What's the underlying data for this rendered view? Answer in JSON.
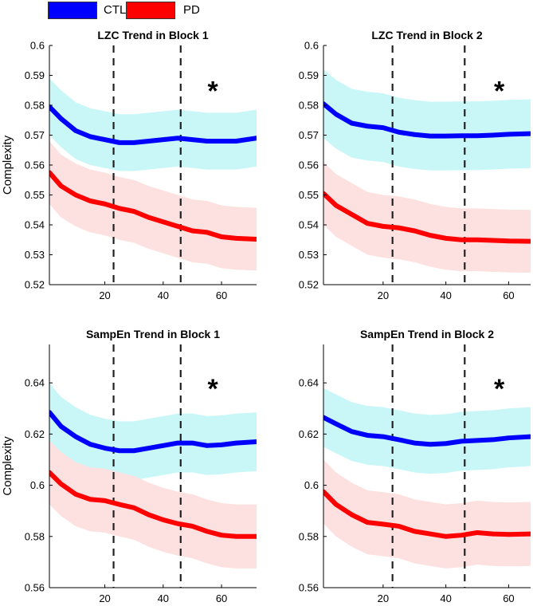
{
  "legend": {
    "items": [
      {
        "label": "CTL",
        "color": "#0000ff"
      },
      {
        "label": "PD",
        "color": "#ff0000"
      }
    ]
  },
  "colors": {
    "ctl_line": "#0000ff",
    "ctl_band": "#c9f7f7",
    "pd_line": "#ff0000",
    "pd_band": "#fde0e0",
    "marker": "#000000"
  },
  "significance_marker": "*",
  "chart_data": [
    {
      "type": "line",
      "title": "LZC Trend in Block 1",
      "ylabel": "Complexity",
      "xlabel": "",
      "xlim": [
        1,
        72
      ],
      "ylim": [
        0.52,
        0.6
      ],
      "xticks": [
        20,
        40,
        60
      ],
      "yticks": [
        0.52,
        0.53,
        0.54,
        0.55,
        0.56,
        0.57,
        0.58,
        0.59,
        0.6
      ],
      "ytick_labels": [
        "0.52",
        "0.53",
        "0.54",
        "0.55",
        "0.56",
        "0.57",
        "0.58",
        "0.59",
        "0.6"
      ],
      "vlines": [
        23,
        46
      ],
      "significance": {
        "x": 57,
        "y": 0.5855
      },
      "series": [
        {
          "name": "CTL",
          "x": [
            1,
            5,
            10,
            15,
            20,
            25,
            30,
            35,
            40,
            45,
            50,
            55,
            60,
            65,
            72
          ],
          "values": [
            0.5795,
            0.5755,
            0.5715,
            0.5695,
            0.5685,
            0.5675,
            0.5675,
            0.568,
            0.5685,
            0.569,
            0.5685,
            0.568,
            0.568,
            0.568,
            0.569
          ],
          "band": 0.0095
        },
        {
          "name": "PD",
          "x": [
            1,
            5,
            10,
            15,
            20,
            25,
            30,
            35,
            40,
            45,
            50,
            55,
            60,
            65,
            72
          ],
          "values": [
            0.5575,
            0.553,
            0.55,
            0.548,
            0.547,
            0.5455,
            0.5445,
            0.5425,
            0.541,
            0.5395,
            0.538,
            0.5375,
            0.536,
            0.5355,
            0.5352
          ],
          "band": 0.0105
        }
      ]
    },
    {
      "type": "line",
      "title": "LZC Trend in Block 2",
      "ylabel": "",
      "xlabel": "",
      "xlim": [
        1,
        67
      ],
      "ylim": [
        0.52,
        0.6
      ],
      "xticks": [
        20,
        40,
        60
      ],
      "yticks": [
        0.52,
        0.53,
        0.54,
        0.55,
        0.56,
        0.57,
        0.58,
        0.59,
        0.6
      ],
      "ytick_labels": [
        "0.52",
        "0.53",
        "0.54",
        "0.55",
        "0.56",
        "0.57",
        "0.58",
        "0.59",
        "0.6"
      ],
      "vlines": [
        23,
        46
      ],
      "significance": {
        "x": 57,
        "y": 0.5855
      },
      "series": [
        {
          "name": "CTL",
          "x": [
            1,
            5,
            10,
            15,
            20,
            25,
            30,
            35,
            40,
            45,
            50,
            55,
            60,
            67
          ],
          "values": [
            0.5805,
            0.577,
            0.574,
            0.573,
            0.5725,
            0.571,
            0.5702,
            0.5697,
            0.5697,
            0.5698,
            0.5698,
            0.57,
            0.5703,
            0.5705
          ],
          "band": 0.0115
        },
        {
          "name": "PD",
          "x": [
            1,
            5,
            10,
            15,
            20,
            25,
            30,
            35,
            40,
            45,
            50,
            55,
            60,
            67
          ],
          "values": [
            0.5505,
            0.5465,
            0.5435,
            0.5405,
            0.5395,
            0.539,
            0.538,
            0.5365,
            0.5355,
            0.535,
            0.535,
            0.5348,
            0.5346,
            0.5345
          ],
          "band": 0.0105
        }
      ]
    },
    {
      "type": "line",
      "title": "SampEn Trend in Block 1",
      "ylabel": "Complexity",
      "xlabel": "",
      "xlim": [
        1,
        72
      ],
      "ylim": [
        0.56,
        0.655
      ],
      "xticks": [
        20,
        40,
        60
      ],
      "yticks": [
        0.56,
        0.58,
        0.6,
        0.62,
        0.64
      ],
      "ytick_labels": [
        "0.56",
        "0.58",
        "0.6",
        "0.62",
        "0.64"
      ],
      "vlines": [
        23,
        46
      ],
      "significance": {
        "x": 57,
        "y": 0.6385
      },
      "series": [
        {
          "name": "CTL",
          "x": [
            1,
            5,
            10,
            15,
            20,
            25,
            30,
            35,
            40,
            45,
            50,
            55,
            60,
            65,
            72
          ],
          "values": [
            0.6285,
            0.623,
            0.619,
            0.616,
            0.6145,
            0.6135,
            0.6135,
            0.6145,
            0.6155,
            0.6165,
            0.6165,
            0.6155,
            0.6158,
            0.6165,
            0.617
          ],
          "band": 0.0115
        },
        {
          "name": "PD",
          "x": [
            1,
            5,
            10,
            15,
            20,
            25,
            30,
            35,
            40,
            45,
            50,
            55,
            60,
            65,
            72
          ],
          "values": [
            0.605,
            0.6005,
            0.5965,
            0.5945,
            0.594,
            0.5925,
            0.5912,
            0.5885,
            0.5865,
            0.585,
            0.584,
            0.582,
            0.5805,
            0.58,
            0.58
          ],
          "band": 0.0125
        }
      ]
    },
    {
      "type": "line",
      "title": "SampEn Trend in Block 2",
      "ylabel": "",
      "xlabel": "",
      "xlim": [
        1,
        67
      ],
      "ylim": [
        0.56,
        0.655
      ],
      "xticks": [
        20,
        40,
        60
      ],
      "yticks": [
        0.56,
        0.58,
        0.6,
        0.62,
        0.64
      ],
      "ytick_labels": [
        "0.56",
        "0.58",
        "0.6",
        "0.62",
        "0.64"
      ],
      "vlines": [
        23,
        46
      ],
      "significance": {
        "x": 57,
        "y": 0.6385
      },
      "series": [
        {
          "name": "CTL",
          "x": [
            1,
            5,
            10,
            15,
            20,
            25,
            30,
            35,
            40,
            45,
            50,
            55,
            60,
            67
          ],
          "values": [
            0.6265,
            0.624,
            0.621,
            0.6195,
            0.619,
            0.6178,
            0.6165,
            0.616,
            0.6163,
            0.6172,
            0.6175,
            0.6178,
            0.6185,
            0.619
          ],
          "band": 0.0115
        },
        {
          "name": "PD",
          "x": [
            1,
            5,
            10,
            15,
            20,
            25,
            30,
            35,
            40,
            45,
            50,
            55,
            60,
            67
          ],
          "values": [
            0.5975,
            0.5925,
            0.5885,
            0.5855,
            0.5848,
            0.584,
            0.582,
            0.581,
            0.58,
            0.5805,
            0.5815,
            0.581,
            0.5808,
            0.581
          ],
          "band": 0.0125
        }
      ]
    }
  ]
}
